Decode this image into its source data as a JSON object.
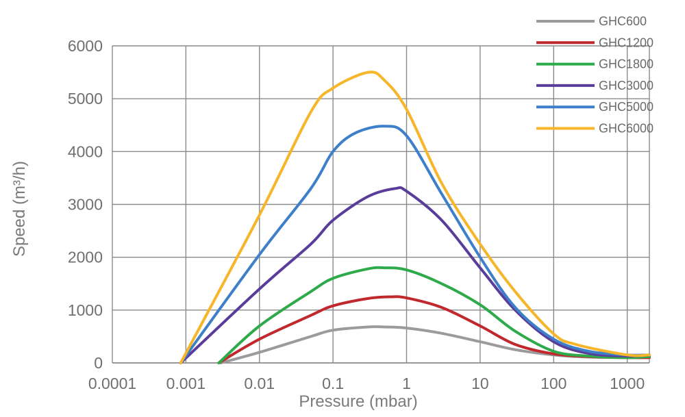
{
  "chart_data": {
    "type": "line",
    "xlabel": "Pressure (mbar)",
    "ylabel": "Speed (m³/h)",
    "x_scale": "log",
    "xlim": [
      0.0001,
      2000
    ],
    "ylim": [
      0,
      6000
    ],
    "x_ticks": [
      0.0001,
      0.001,
      0.01,
      0.1,
      1,
      10,
      100,
      1000
    ],
    "x_tick_labels": [
      "0.0001",
      "0.001",
      "0.01",
      "0.1",
      "1",
      "10",
      "100",
      "1000"
    ],
    "y_ticks": [
      0,
      1000,
      2000,
      3000,
      4000,
      5000,
      6000
    ],
    "y_tick_labels": [
      "0",
      "1000",
      "2000",
      "3000",
      "4000",
      "5000",
      "6000"
    ],
    "grid": true,
    "legend_position": "top-right",
    "series": [
      {
        "name": "GHC600",
        "color": "#9b9b9b",
        "x": [
          0.003,
          0.01,
          0.05,
          0.1,
          0.3,
          0.5,
          1,
          3,
          10,
          30,
          100,
          300,
          1000,
          2000
        ],
        "y": [
          0,
          200,
          500,
          620,
          680,
          680,
          660,
          560,
          400,
          250,
          150,
          110,
          100,
          100
        ]
      },
      {
        "name": "GHC1200",
        "color": "#c0282d",
        "x": [
          0.0028,
          0.01,
          0.05,
          0.1,
          0.3,
          0.6,
          1,
          3,
          10,
          30,
          100,
          300,
          1000,
          2000
        ],
        "y": [
          0,
          450,
          900,
          1080,
          1220,
          1250,
          1230,
          1050,
          700,
          350,
          170,
          120,
          100,
          100
        ]
      },
      {
        "name": "GHC1800",
        "color": "#2eaa4a",
        "x": [
          0.0028,
          0.01,
          0.05,
          0.1,
          0.3,
          0.5,
          1,
          3,
          10,
          30,
          100,
          300,
          1000,
          2000
        ],
        "y": [
          0,
          700,
          1350,
          1600,
          1780,
          1800,
          1760,
          1500,
          1100,
          600,
          220,
          130,
          100,
          120
        ]
      },
      {
        "name": "GHC3000",
        "color": "#5a3d9b",
        "x": [
          0.00085,
          0.01,
          0.05,
          0.1,
          0.3,
          0.7,
          1,
          3,
          10,
          30,
          100,
          300,
          1000,
          2000
        ],
        "y": [
          0,
          1400,
          2250,
          2700,
          3150,
          3300,
          3250,
          2700,
          1800,
          1000,
          400,
          180,
          130,
          150
        ]
      },
      {
        "name": "GHC5000",
        "color": "#3d7fc9",
        "x": [
          0.00085,
          0.01,
          0.05,
          0.1,
          0.2,
          0.5,
          1,
          3,
          10,
          30,
          100,
          300,
          1000,
          2000
        ],
        "y": [
          0,
          2050,
          3300,
          4000,
          4350,
          4480,
          4300,
          3200,
          2000,
          1050,
          450,
          220,
          150,
          150
        ]
      },
      {
        "name": "GHC6000",
        "color": "#f7b52a",
        "x": [
          0.00085,
          0.01,
          0.05,
          0.1,
          0.3,
          0.5,
          1,
          3,
          10,
          30,
          100,
          200,
          1000,
          2000
        ],
        "y": [
          0,
          2800,
          4750,
          5200,
          5500,
          5350,
          4800,
          3400,
          2250,
          1350,
          550,
          350,
          150,
          150
        ]
      }
    ]
  }
}
